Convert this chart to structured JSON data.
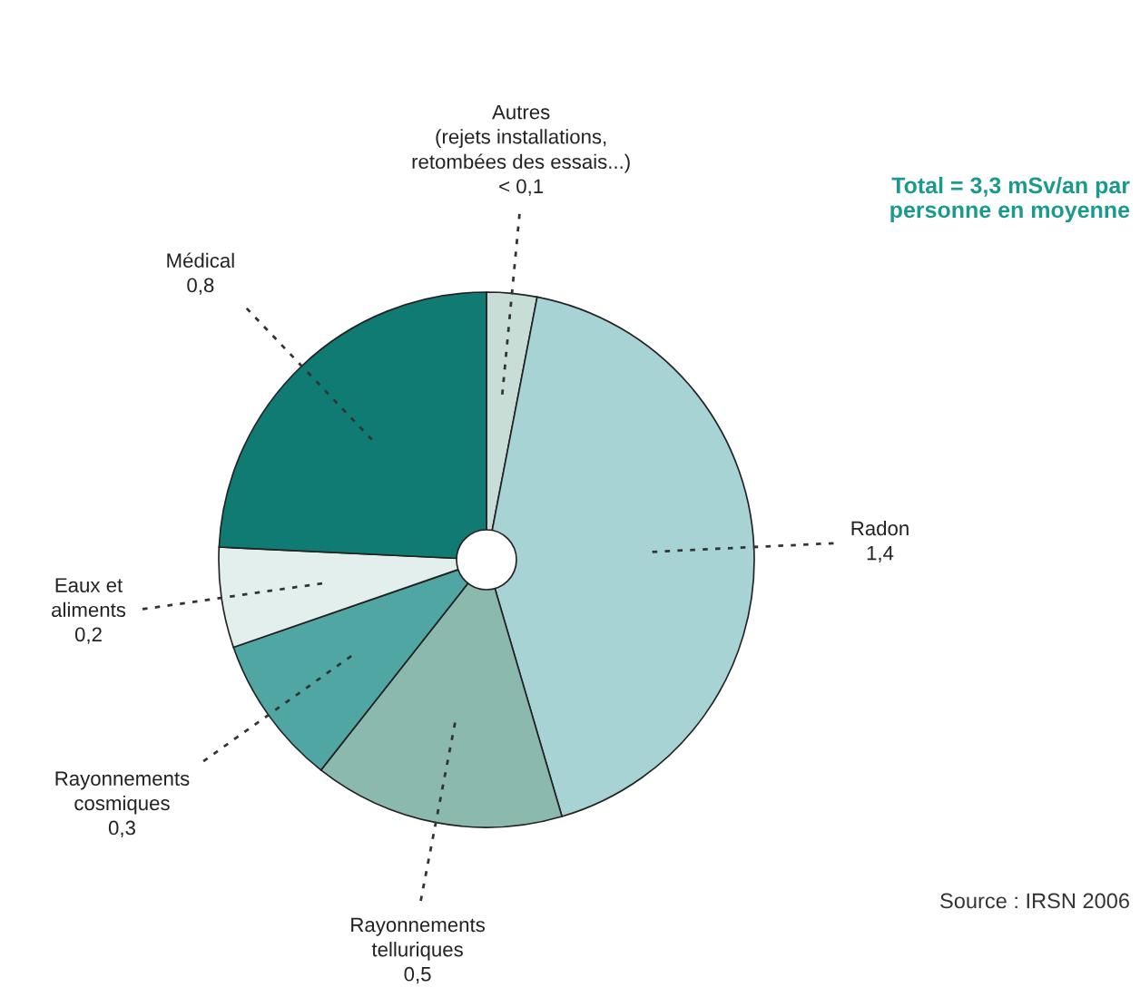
{
  "chart_data": {
    "type": "pie",
    "categories": [
      "Autres\n(rejets installations,\nretombées des essais...)",
      "Radon",
      "Rayonnements\ntelluriques",
      "Rayonnements\ncosmiques",
      "Eaux et\naliments",
      "Médical"
    ],
    "values": [
      0.1,
      1.4,
      0.5,
      0.3,
      0.2,
      0.8
    ],
    "value_labels": [
      "< 0,1",
      "1,4",
      "0,5",
      "0,3",
      "0,2",
      "0,8"
    ],
    "colors": [
      "#c9ddd7",
      "#a7d3d5",
      "#8cb9ad",
      "#4fa6a3",
      "#e3efec",
      "#0f7b73"
    ],
    "annotations": [
      "Total = 3,3 mSv/an par\npersonne en moyenne",
      "Source : IRSN 2006"
    ]
  }
}
